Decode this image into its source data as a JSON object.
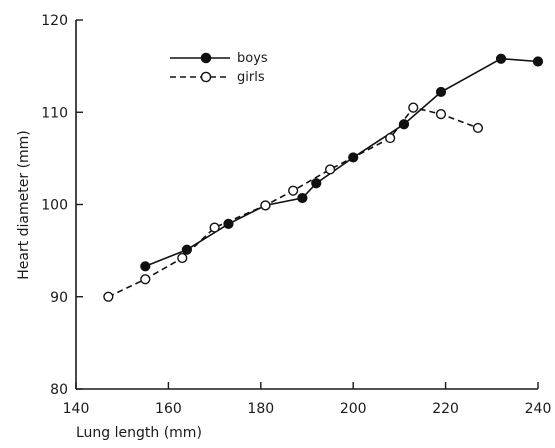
{
  "chart_data": {
    "type": "line",
    "title": "",
    "xlabel": "Lung length (mm)",
    "ylabel": "Heart diameter (mm)",
    "xlim": [
      140,
      240
    ],
    "ylim": [
      80,
      120
    ],
    "x_ticks": [
      "140",
      "160",
      "180",
      "200",
      "220",
      "240"
    ],
    "y_ticks": [
      "80",
      "90",
      "100",
      "110",
      "120"
    ],
    "grid": false,
    "legend_position": "top-left",
    "series": [
      {
        "name": "boys",
        "marker": "filled-circle",
        "line_style": "solid",
        "color": "#111111",
        "x": [
          155,
          164,
          173,
          181,
          189,
          192,
          200,
          211,
          219,
          232,
          240
        ],
        "y": [
          93.3,
          95.1,
          97.9,
          99.9,
          100.7,
          102.3,
          105.1,
          108.7,
          112.2,
          115.8,
          115.5
        ]
      },
      {
        "name": "girls",
        "marker": "open-circle",
        "line_style": "dashed",
        "color": "#111111",
        "x": [
          147,
          155,
          163,
          170,
          181,
          187,
          195,
          208,
          213,
          219,
          227
        ],
        "y": [
          90.0,
          91.9,
          94.2,
          97.5,
          99.9,
          101.5,
          103.8,
          107.2,
          110.5,
          109.8,
          108.3
        ]
      }
    ]
  }
}
